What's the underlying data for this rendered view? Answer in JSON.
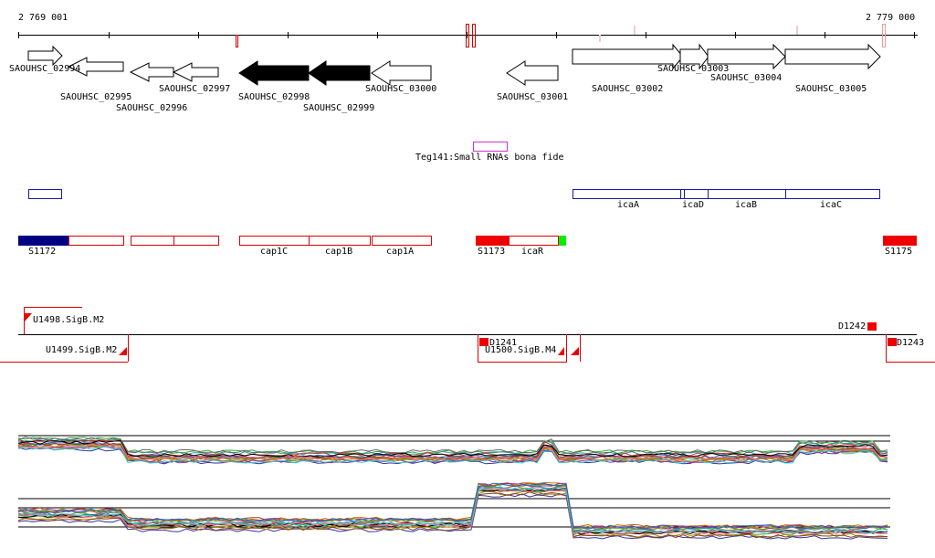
{
  "ruler": {
    "start_label": "2 769 001",
    "end_label": "2 779 000"
  },
  "genes": [
    {
      "label": "SAOUHSC_02994",
      "strand": "+",
      "filled": false
    },
    {
      "label": "SAOUHSC_02995",
      "strand": "-",
      "filled": false
    },
    {
      "label": "SAOUHSC_02996",
      "strand": "-",
      "filled": false
    },
    {
      "label": "SAOUHSC_02997",
      "strand": "-",
      "filled": false
    },
    {
      "label": "SAOUHSC_02998",
      "strand": "-",
      "filled": true
    },
    {
      "label": "SAOUHSC_02999",
      "strand": "-",
      "filled": true
    },
    {
      "label": "SAOUHSC_03000",
      "strand": "-",
      "filled": false
    },
    {
      "label": "SAOUHSC_03001",
      "strand": "-",
      "filled": false
    },
    {
      "label": "SAOUHSC_03002",
      "strand": "+",
      "filled": false
    },
    {
      "label": "SAOUHSC_03003",
      "strand": "+",
      "filled": false
    },
    {
      "label": "SAOUHSC_03004",
      "strand": "+",
      "filled": false
    },
    {
      "label": "SAOUHSC_03005",
      "strand": "+",
      "filled": false
    }
  ],
  "srna": {
    "label": "Teg141:Small RNAs bona fide",
    "color": "#cc33cc"
  },
  "operon_track": {
    "color": "#1a1aa0",
    "labels": [
      "icaA",
      "icaD",
      "icaB",
      "icaC"
    ]
  },
  "segment_track": {
    "color": "#dd0000",
    "labels": [
      "S1172",
      "cap1C",
      "cap1B",
      "cap1A",
      "S1173",
      "icaR",
      "S1175"
    ]
  },
  "promoter_track": {
    "color": "#dd0000",
    "labels": [
      "U1498.SigB.M2",
      "U1499.SigB.M2",
      "D1241",
      "U1500.SigB.M4",
      "D1242",
      "D1243"
    ]
  },
  "colors": {
    "filled_gene": "#000000",
    "stroke": "#000000",
    "s1172_fill": "#000080",
    "end_marker": "#00ee00"
  }
}
